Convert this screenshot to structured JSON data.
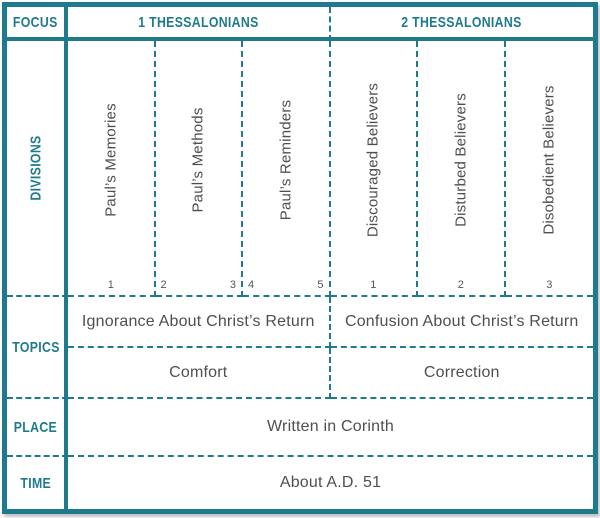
{
  "colors": {
    "accent_teal": "#1f7b8c",
    "body_text": "#4e4f52"
  },
  "row_labels": {
    "focus": "FOCUS",
    "divisions": "DIVISIONS",
    "topics": "TOPICS",
    "place": "PLACE",
    "time": "TIME"
  },
  "focus": {
    "book1": "1 THESSALONIANS",
    "book2": "2 THESSALONIANS"
  },
  "divisions": [
    {
      "title": "Paul’s Memories",
      "chapters": [
        "1"
      ]
    },
    {
      "title": "Paul’s Methods",
      "chapters": [
        "2",
        "3"
      ]
    },
    {
      "title": "Paul’s Reminders",
      "chapters": [
        "4",
        "5"
      ]
    },
    {
      "title": "Discouraged Believers",
      "chapters": [
        "1"
      ]
    },
    {
      "title": "Disturbed Believers",
      "chapters": [
        "2"
      ]
    },
    {
      "title": "Disobedient Believers",
      "chapters": [
        "3"
      ]
    }
  ],
  "topics": {
    "row1_left": "Ignorance About Christ’s Return",
    "row1_right": "Confusion About Christ’s Return",
    "row2_left": "Comfort",
    "row2_right": "Correction"
  },
  "place": {
    "value": "Written in Corinth"
  },
  "time": {
    "value": "About A.D. 51"
  }
}
